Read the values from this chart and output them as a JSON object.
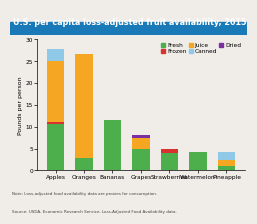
{
  "title": "U.S. per capita loss-adjusted fruit availability, 2015",
  "ylabel": "Pounds per person",
  "categories": [
    "Apples",
    "Oranges",
    "Bananas",
    "Grapes",
    "Strawberries",
    "Watermelon",
    "Pineapple"
  ],
  "fresh": [
    10.7,
    2.8,
    11.5,
    5.0,
    4.0,
    4.3,
    0.9
  ],
  "frozen": [
    0.3,
    0.1,
    0.0,
    0.0,
    1.0,
    0.0,
    0.0
  ],
  "juice": [
    14.0,
    23.7,
    0.0,
    2.5,
    0.0,
    0.0,
    1.5
  ],
  "canned": [
    2.8,
    0.0,
    0.0,
    0.0,
    0.0,
    0.0,
    1.8
  ],
  "dried": [
    0.0,
    0.0,
    0.0,
    0.5,
    0.0,
    0.0,
    0.0
  ],
  "colors": {
    "fresh": "#4caf4c",
    "frozen": "#d93030",
    "juice": "#f5a623",
    "canned": "#90c8e8",
    "dried": "#7b2fa0"
  },
  "ylim": [
    0,
    30
  ],
  "yticks": [
    0,
    5,
    10,
    15,
    20,
    25,
    30
  ],
  "title_bg_top": "#1565a0",
  "title_bg_bot": "#1a7ab8",
  "title_color": "#ffffff",
  "title_fontsize": 5.8,
  "axis_fontsize": 4.5,
  "tick_fontsize": 4.2,
  "legend_fontsize": 4.2,
  "note_line1": "Note: Loss-adjusted food availability data are proxies for consumption.",
  "note_line2": "Source: USDA, Economic Research Service, Loss-Adjusted Food Availability data.",
  "plot_bg": "#f0ede8",
  "fig_bg": "#f0ede8"
}
